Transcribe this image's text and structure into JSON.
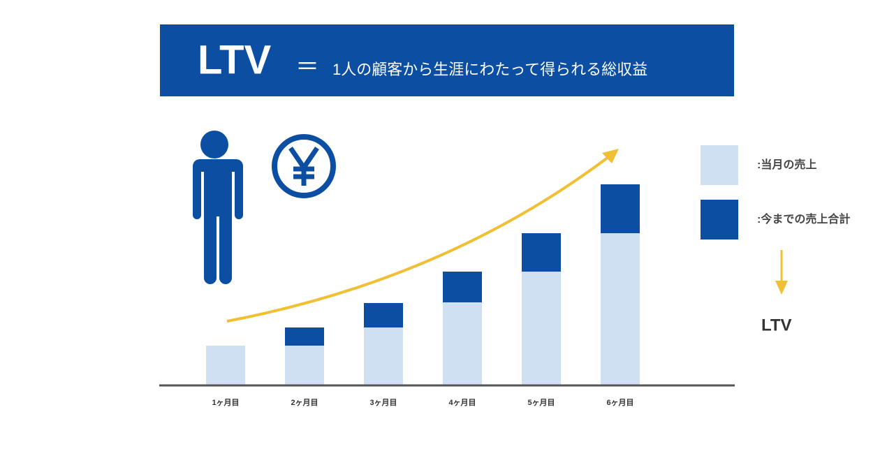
{
  "chart_data": {
    "type": "stacked-bar",
    "title": "LTV",
    "title_separator": "＝",
    "subtitle": "1人の顧客から生涯にわたって得られる総収益",
    "categories": [
      "1ヶ月目",
      "2ヶ月目",
      "3ヶ月目",
      "4ヶ月目",
      "5ヶ月目",
      "6ヶ月目"
    ],
    "series": [
      {
        "name": ":当月の売上",
        "color": "#cfe0f2",
        "values": [
          56,
          56,
          82,
          118,
          162,
          217
        ]
      },
      {
        "name": ":今までの売上合計",
        "color": "#0b4ea2",
        "values": [
          0,
          26,
          35,
          44,
          55,
          70
        ]
      }
    ],
    "result_label": "LTV"
  }
}
